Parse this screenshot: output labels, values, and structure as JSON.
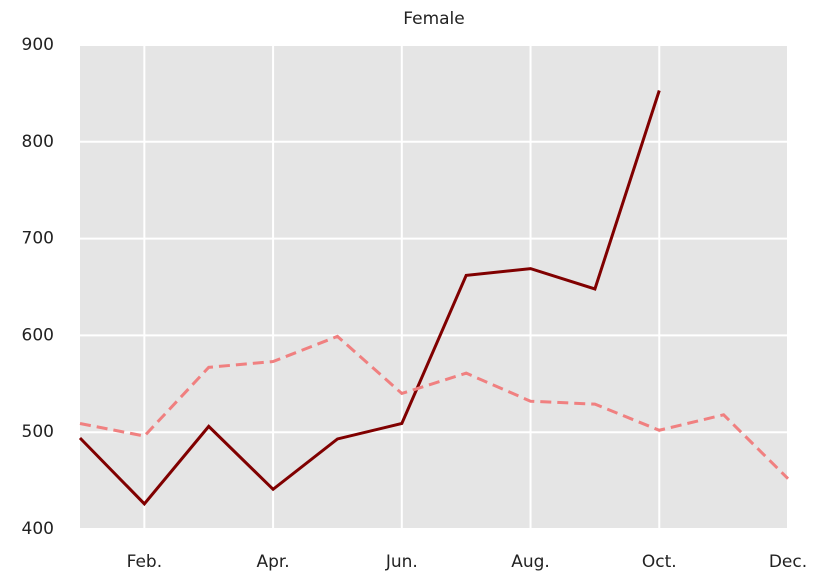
{
  "chart_data": {
    "type": "line",
    "title": "Female",
    "categories": [
      null,
      "Feb.",
      null,
      "Apr.",
      null,
      "Jun.",
      null,
      "Aug.",
      null,
      "Oct.",
      null,
      "Dec."
    ],
    "series": [
      {
        "color": "#800000",
        "linestyle": "solid",
        "values": [
          494,
          426,
          506,
          441,
          493,
          509,
          662,
          669,
          648,
          853,
          null,
          null
        ]
      },
      {
        "color": "#f08080",
        "linestyle": "dashed",
        "values": [
          509,
          496,
          567,
          573,
          599,
          540,
          561,
          532,
          529,
          502,
          518,
          452
        ]
      }
    ],
    "ylim": [
      400,
      900
    ],
    "yticks": [
      400,
      500,
      600,
      700,
      800,
      900
    ],
    "grid": true,
    "background": "#e5e5e5"
  }
}
